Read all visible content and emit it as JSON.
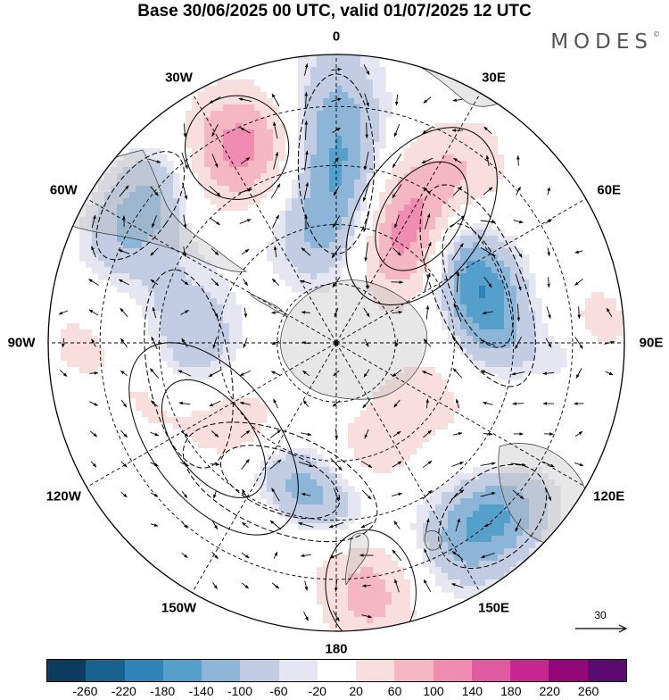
{
  "title": "Base 30/06/2025 00 UTC, valid 01/07/2025 12 UTC",
  "brand": "MODES",
  "brand_mark": "©",
  "projection": "south-polar-stereographic",
  "longitude_labels": [
    {
      "id": "lon-0",
      "text": "0",
      "angle": 0
    },
    {
      "id": "lon-30e",
      "text": "30E",
      "angle": 30
    },
    {
      "id": "lon-60e",
      "text": "60E",
      "angle": 60
    },
    {
      "id": "lon-90e",
      "text": "90E",
      "angle": 90
    },
    {
      "id": "lon-120e",
      "text": "120E",
      "angle": 120
    },
    {
      "id": "lon-150e",
      "text": "150E",
      "angle": 150
    },
    {
      "id": "lon-180",
      "text": "180",
      "angle": 180
    },
    {
      "id": "lon-150w",
      "text": "150W",
      "angle": 210
    },
    {
      "id": "lon-120w",
      "text": "120W",
      "angle": 240
    },
    {
      "id": "lon-90w",
      "text": "90W",
      "angle": 270
    },
    {
      "id": "lon-60w",
      "text": "60W",
      "angle": 300
    },
    {
      "id": "lon-30w",
      "text": "30W",
      "angle": 330
    }
  ],
  "reference_vector": {
    "label": "30"
  },
  "colorbar": {
    "colors": [
      "#0c3d5e",
      "#17618f",
      "#2e83b8",
      "#559fcb",
      "#8db5d8",
      "#c2cde4",
      "#e6e6f2",
      "#ffffff",
      "#f9dede",
      "#f5b7c4",
      "#ef8cb0",
      "#e05aa2",
      "#c7288f",
      "#93067a",
      "#5b0a70"
    ],
    "ticks": [
      "-260",
      "-220",
      "-180",
      "-140",
      "-100",
      "-60",
      "-20",
      "20",
      "60",
      "100",
      "140",
      "180",
      "220",
      "260"
    ]
  },
  "anomaly_centers": [
    {
      "lon": 0,
      "r": 0.62,
      "sx": 0.11,
      "sy": 0.26,
      "v": -140
    },
    {
      "lon": -27,
      "r": 0.76,
      "sx": 0.15,
      "sy": 0.15,
      "v": 140
    },
    {
      "lon": -55,
      "r": 0.83,
      "sx": 0.18,
      "sy": 0.09,
      "v": -90
    },
    {
      "lon": -75,
      "r": 0.57,
      "sx": 0.14,
      "sy": 0.1,
      "v": 50
    },
    {
      "lon": 34,
      "r": 0.53,
      "sx": 0.14,
      "sy": 0.22,
      "v": 180
    },
    {
      "lon": 68,
      "r": 0.53,
      "sx": 0.24,
      "sy": 0.1,
      "v": -180
    },
    {
      "lon": -100,
      "r": 0.52,
      "sx": 0.29,
      "sy": 0.12,
      "v": -170
    },
    {
      "lon": -128,
      "r": 0.54,
      "sx": 0.25,
      "sy": 0.14,
      "v": 240
    },
    {
      "lon": -158,
      "r": 0.52,
      "sx": 0.23,
      "sy": 0.11,
      "v": -180
    },
    {
      "lon": 172,
      "r": 0.86,
      "sx": 0.13,
      "sy": 0.17,
      "v": 100
    },
    {
      "lon": 138,
      "r": 0.81,
      "sx": 0.18,
      "sy": 0.12,
      "v": -160
    },
    {
      "lon": 112,
      "r": 0.73,
      "sx": 0.24,
      "sy": 0.18,
      "v": 75
    },
    {
      "lon": 95,
      "r": 0.79,
      "sx": 0.1,
      "sy": 0.09,
      "v": -60
    },
    {
      "lon": 85,
      "r": 0.92,
      "sx": 0.1,
      "sy": 0.08,
      "v": 50
    },
    {
      "lon": -90,
      "r": 0.92,
      "sx": 0.14,
      "sy": 0.1,
      "v": 40
    },
    {
      "lon": 168,
      "r": 0.42,
      "sx": 0.12,
      "sy": 0.12,
      "v": 60
    },
    {
      "lon": -15,
      "r": 0.38,
      "sx": 0.12,
      "sy": 0.12,
      "v": -40
    },
    {
      "lon": 128,
      "r": 0.33,
      "sx": 0.13,
      "sy": 0.1,
      "v": 60
    }
  ]
}
